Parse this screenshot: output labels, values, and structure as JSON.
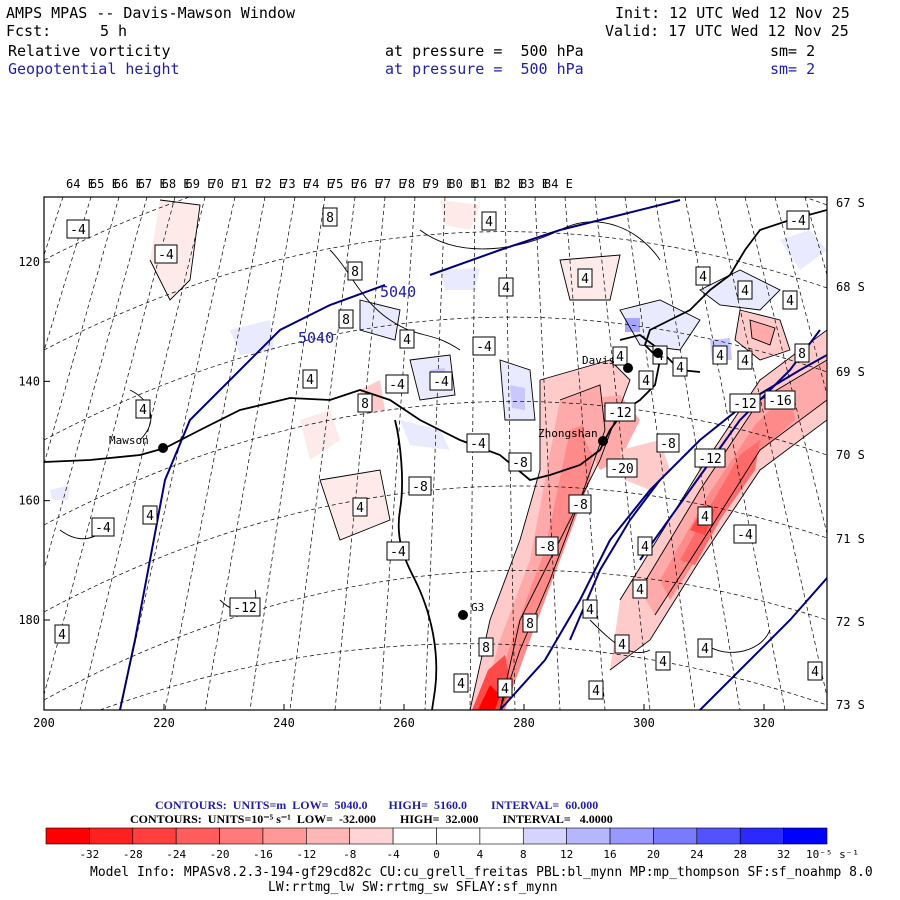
{
  "header": {
    "title": "AMPS MPAS -- Davis-Mawson Window",
    "fcst_label": "Fcst:",
    "fcst_value": "5 h",
    "init": "Init: 12 UTC Wed 12 Nov 25",
    "valid": "Valid: 17 UTC Wed 12 Nov 25",
    "field1": {
      "name": "Relative vorticity",
      "level": "at pressure =  500 hPa",
      "sm": "sm= 2"
    },
    "field2": {
      "name": "Geopotential height",
      "level": "at pressure =  500 hPa",
      "sm": "sm= 2"
    }
  },
  "axes": {
    "lon_labels": [
      "64 E",
      "65 E",
      "66 E",
      "67 E",
      "68 E",
      "69 E",
      "70 E",
      "71 E",
      "72 E",
      "73 E",
      "74 E",
      "75 E",
      "76 E",
      "77 E",
      "78 E",
      "79 E",
      "80 E",
      "81 E",
      "82 E",
      "83 E",
      "84 E"
    ],
    "lat_labels": [
      "67 S",
      "68 S",
      "69 S",
      "70 S",
      "71 S",
      "72 S",
      "73 S"
    ],
    "x_ticks": [
      "200",
      "220",
      "240",
      "260",
      "280",
      "300",
      "320"
    ],
    "y_ticks": [
      "120",
      "140",
      "160",
      "180"
    ]
  },
  "stations": [
    {
      "name": "Mawson"
    },
    {
      "name": "Davis"
    },
    {
      "name": "Zhongshan"
    },
    {
      "name": "G3"
    }
  ],
  "height_contour_labels": [
    "5040",
    "5040"
  ],
  "contour_labels": [
    "-4",
    "-4",
    "8",
    "4",
    "-4",
    "8",
    "4",
    "4",
    "4",
    "4",
    "8",
    "4",
    "-4",
    "4",
    "4",
    "8",
    "4",
    "4",
    "4",
    "4",
    "4",
    "-4",
    "-4",
    "4",
    "8",
    "-12",
    "-16",
    "-12",
    "-4",
    "-8",
    "-8",
    "-12",
    "-20",
    "-8",
    "4",
    "4",
    "4",
    "-8",
    "-4",
    "-8",
    "4",
    "-4",
    "-4",
    "4",
    "4",
    "-12",
    "8",
    "4",
    "4",
    "8",
    "4",
    "4",
    "4",
    "4",
    "4",
    "4",
    "4"
  ],
  "legend": {
    "line1": "CONTOURS:  UNITS=m  LOW=  5040.0       HIGH=  5160.0        INTERVAL=  60.000",
    "line2": "CONTOURS:  UNITS=10⁻⁵ s⁻¹  LOW=  -32.000        HIGH=  32.000        INTERVAL=   4.0000",
    "colorbar_labels": [
      "-32",
      "-28",
      "-24",
      "-20",
      "-16",
      "-12",
      "-8",
      "-4",
      "0",
      "4",
      "8",
      "12",
      "16",
      "20",
      "24",
      "28",
      "32"
    ],
    "colorbar_units": "10⁻⁵ s⁻¹",
    "colors": [
      "#ff0000",
      "#ff2a2a",
      "#ff4a4a",
      "#ff6a6a",
      "#ff8a8a",
      "#ffaaaa",
      "#ffcaca",
      "#ffeaea",
      "#ffffff",
      "#ffffff",
      "#eaeaff",
      "#c8c8ff",
      "#a6a6ff",
      "#8484ff",
      "#5c5cff",
      "#3434ff",
      "#0000ff"
    ]
  },
  "footer": {
    "line1": "Model Info: MPASv8.2.3-194-gf29cd82c CU:cu_grell_freitas PBL:bl_mynn MP:mp_thompson SF:sf_noahmp 8.0",
    "line2": "LW:rrtmg_lw SW:rrtmg_sw SFLAY:sf_mynn"
  }
}
